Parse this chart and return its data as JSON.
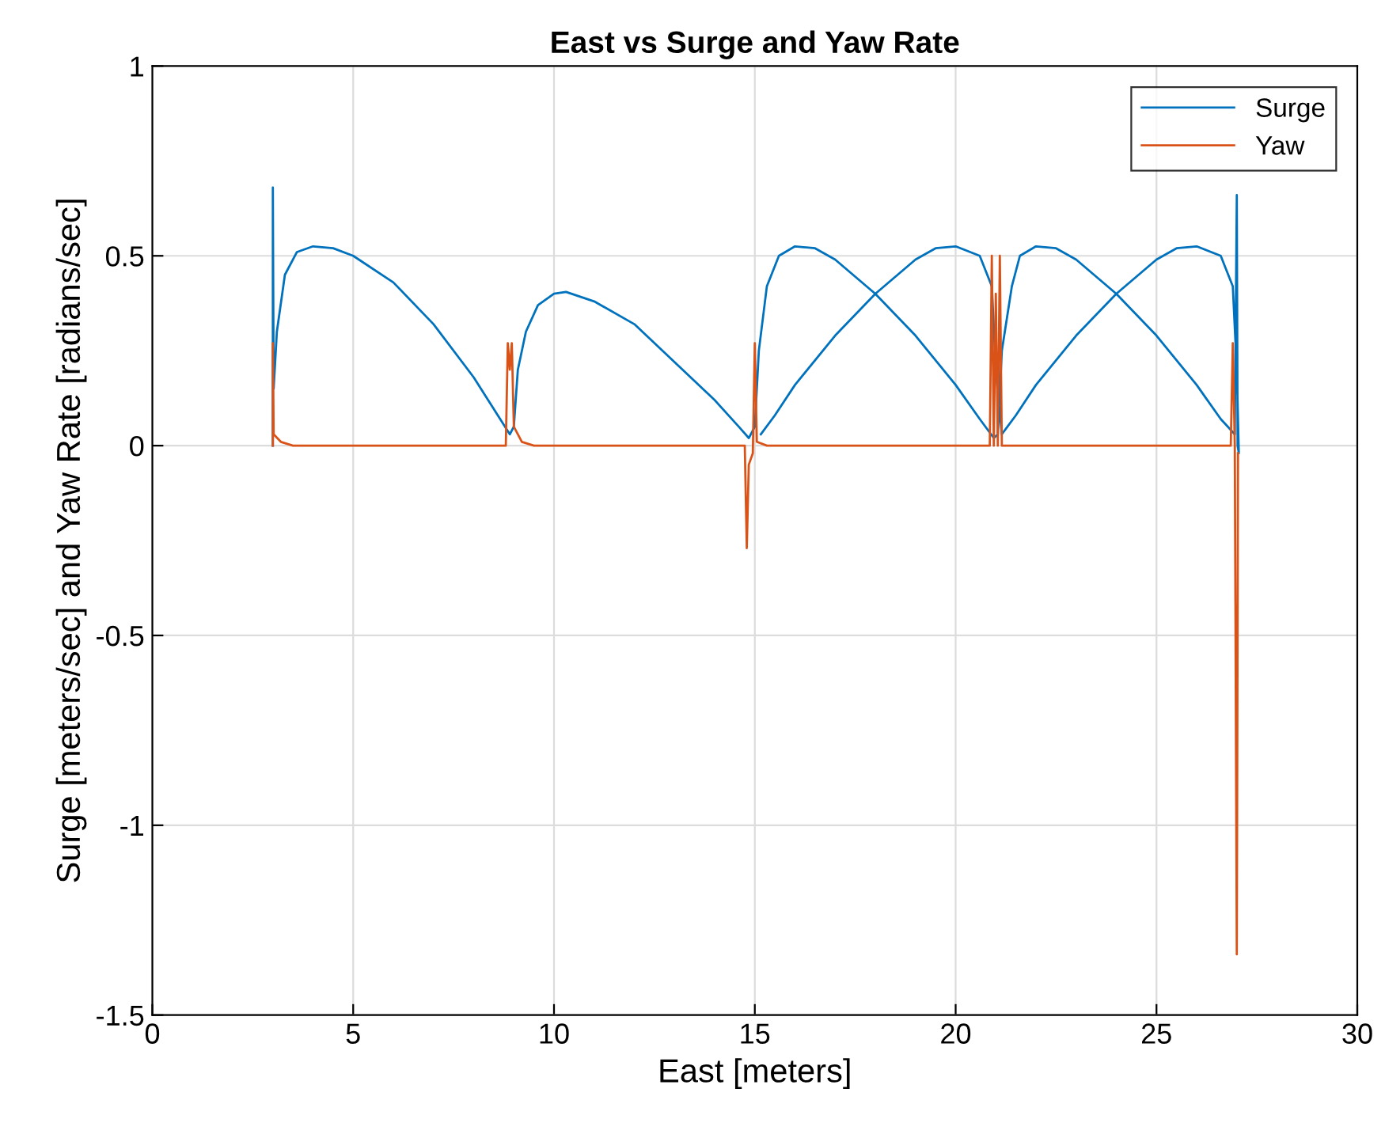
{
  "chart_data": {
    "type": "line",
    "title": "East vs Surge and Yaw Rate",
    "xlabel": "East [meters]",
    "ylabel": "Surge [meters/sec] and Yaw Rate [radians/sec]",
    "xlim": [
      0,
      30
    ],
    "ylim": [
      -1.5,
      1
    ],
    "xticks": [
      0,
      5,
      10,
      15,
      20,
      25,
      30
    ],
    "yticks": [
      -1.5,
      -1,
      -0.5,
      0,
      0.5,
      1
    ],
    "grid": true,
    "legend": "top right",
    "series": [
      {
        "name": "Surge",
        "color": "#0072bd",
        "x": [
          3.0,
          3.0,
          3.02,
          3.1,
          3.3,
          3.6,
          4.0,
          4.5,
          5,
          6,
          7,
          8,
          8.6,
          8.9,
          9.0,
          9.1,
          9.3,
          9.6,
          10.0,
          10.3,
          11,
          12,
          13,
          14,
          14.6,
          14.85,
          15.0,
          15.1,
          15.3,
          15.6,
          16.0,
          16.5,
          17,
          18,
          19,
          20,
          20.6,
          20.95,
          21.05,
          21.15,
          21.4,
          21.6,
          22.0,
          22.5,
          23,
          24,
          25,
          26,
          26.6,
          26.95,
          27.0,
          27.02,
          27.05,
          27.0,
          26.9,
          26.6,
          26.0,
          25.5,
          25,
          24,
          23,
          22,
          21.5,
          21.15,
          21.0,
          20.9,
          20.6,
          20.0,
          19.5,
          19,
          18,
          17,
          16,
          15.5,
          15.15
        ],
        "values": [
          0.0,
          0.68,
          0.15,
          0.3,
          0.45,
          0.51,
          0.525,
          0.52,
          0.5,
          0.43,
          0.32,
          0.18,
          0.08,
          0.03,
          0.05,
          0.2,
          0.3,
          0.37,
          0.4,
          0.405,
          0.38,
          0.32,
          0.22,
          0.12,
          0.05,
          0.02,
          0.05,
          0.25,
          0.42,
          0.5,
          0.525,
          0.52,
          0.49,
          0.4,
          0.29,
          0.16,
          0.07,
          0.02,
          0.03,
          0.25,
          0.42,
          0.5,
          0.525,
          0.52,
          0.49,
          0.4,
          0.29,
          0.16,
          0.07,
          0.03,
          0.66,
          0.0,
          -0.02,
          0.2,
          0.42,
          0.5,
          0.525,
          0.52,
          0.49,
          0.4,
          0.29,
          0.16,
          0.08,
          0.03,
          0.2,
          0.42,
          0.5,
          0.525,
          0.52,
          0.49,
          0.4,
          0.29,
          0.16,
          0.08,
          0.03
        ]
      },
      {
        "name": "Yaw",
        "color": "#d95319",
        "x": [
          3.0,
          3.0,
          3.02,
          3.2,
          3.5,
          8.8,
          8.85,
          8.9,
          8.95,
          9.0,
          9.2,
          9.5,
          14.75,
          14.8,
          14.85,
          14.95,
          15.0,
          15.05,
          15.3,
          20.85,
          20.9,
          20.95,
          21.0,
          21.05,
          21.1,
          21.15,
          21.3,
          26.85,
          26.9,
          26.95,
          27.0,
          27.03
        ],
        "values": [
          0,
          0.27,
          0.03,
          0.01,
          0,
          0,
          0.27,
          0.2,
          0.27,
          0.05,
          0.01,
          0,
          0,
          -0.27,
          -0.05,
          -0.02,
          0.27,
          0.01,
          0,
          0,
          0.5,
          0.0,
          0.4,
          0.0,
          0.5,
          0.0,
          0,
          0,
          0.27,
          0.0,
          -1.34,
          -0.02
        ]
      }
    ]
  }
}
